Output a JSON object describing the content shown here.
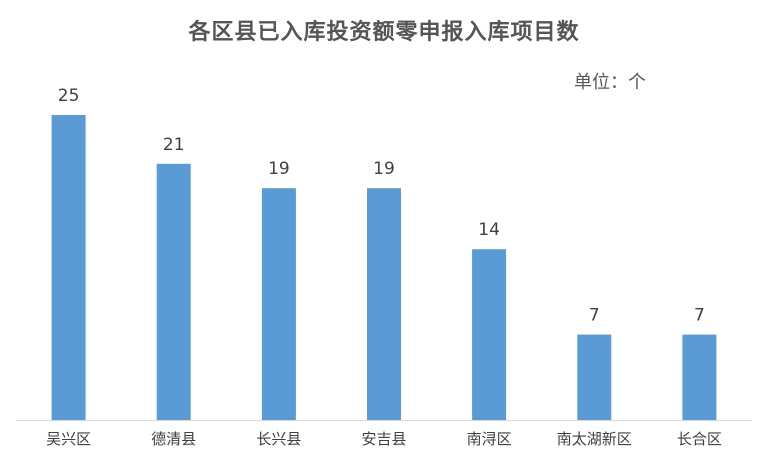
{
  "chart_data": {
    "type": "bar",
    "title": "各区县已入库投资额零申报入库项目数",
    "unit_label": "单位：个",
    "categories": [
      "吴兴区",
      "德清县",
      "长兴县",
      "安吉县",
      "南浔区",
      "南太湖新区",
      "长合区"
    ],
    "values": [
      25,
      21,
      19,
      19,
      14,
      7,
      7
    ],
    "ylim": [
      0,
      25
    ],
    "grid": false,
    "legend": "none",
    "bar_color": "#5b9bd5",
    "axis_color": "#d9d9d9"
  }
}
